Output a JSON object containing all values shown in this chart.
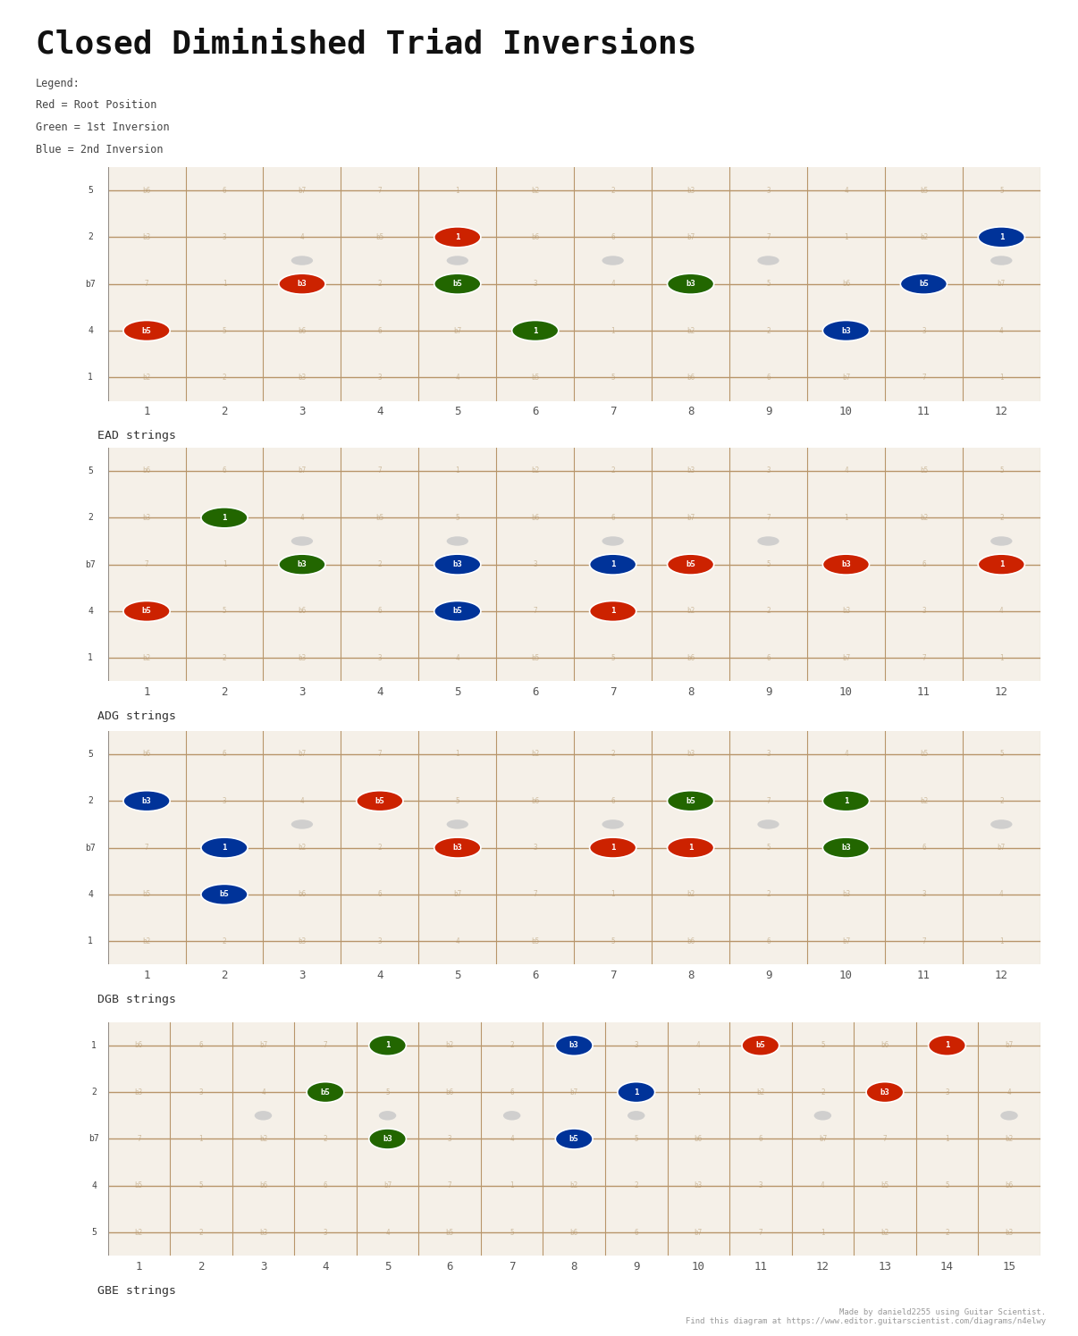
{
  "title": "Closed Diminished Triad Inversions",
  "background_color": "#ffffff",
  "fretboard_bg": "#f5f0e8",
  "fret_line_color": "#b8956a",
  "string_color": "#b8956a",
  "nut_color": "#999999",
  "legend": {
    "title": "Legend:",
    "red": "Red = Root Position",
    "green": "Green = 1st Inversion",
    "blue": "Blue = 2nd Inversion"
  },
  "color_map": {
    "red": "#cc2200",
    "green": "#226600",
    "blue": "#003399",
    "gray": "#bbbbbb"
  },
  "diagrams": [
    {
      "label": "EAD strings",
      "num_frets": 12,
      "num_strings": 5,
      "string_labels": [
        "5",
        "2",
        "b7",
        "4",
        "1"
      ],
      "fret_markers": [
        3,
        5,
        7,
        9,
        12
      ],
      "scale_notes": [
        [
          "b6",
          "6",
          "b7",
          "7",
          "1",
          "b2",
          "2",
          "b3",
          "3",
          "4",
          "b5",
          "5"
        ],
        [
          "b3",
          "3",
          "4",
          "b5",
          "5",
          "b6",
          "6",
          "b7",
          "7",
          "1",
          "b2",
          "2"
        ],
        [
          "7",
          "1",
          "b2",
          "2",
          "b3",
          "3",
          "4",
          "b5",
          "5",
          "b6",
          "6",
          "b7"
        ],
        [
          "b5",
          "5",
          "b6",
          "6",
          "b7",
          "7",
          "1",
          "b2",
          "2",
          "b3",
          "3",
          "4"
        ],
        [
          "b2",
          "2",
          "b3",
          "3",
          "4",
          "b5",
          "5",
          "b6",
          "6",
          "b7",
          "7",
          "1"
        ]
      ],
      "notes": [
        {
          "fret": 1,
          "string": 4,
          "label": "b5",
          "color": "red"
        },
        {
          "fret": 3,
          "string": 3,
          "label": "b3",
          "color": "red"
        },
        {
          "fret": 5,
          "string": 2,
          "label": "1",
          "color": "red"
        },
        {
          "fret": 5,
          "string": 3,
          "label": "b5",
          "color": "green"
        },
        {
          "fret": 6,
          "string": 4,
          "label": "1",
          "color": "green"
        },
        {
          "fret": 8,
          "string": 3,
          "label": "b3",
          "color": "green"
        },
        {
          "fret": 10,
          "string": 4,
          "label": "b3",
          "color": "blue"
        },
        {
          "fret": 11,
          "string": 3,
          "label": "b5",
          "color": "blue"
        },
        {
          "fret": 12,
          "string": 2,
          "label": "1",
          "color": "blue"
        }
      ]
    },
    {
      "label": "ADG strings",
      "num_frets": 12,
      "num_strings": 5,
      "string_labels": [
        "5",
        "2",
        "b7",
        "4",
        "1"
      ],
      "fret_markers": [
        3,
        5,
        7,
        9,
        12
      ],
      "scale_notes": [
        [
          "b6",
          "6",
          "b7",
          "7",
          "1",
          "b2",
          "2",
          "b3",
          "3",
          "4",
          "b5",
          "5"
        ],
        [
          "b3",
          "3",
          "4",
          "b5",
          "5",
          "b6",
          "6",
          "b7",
          "7",
          "1",
          "b2",
          "2"
        ],
        [
          "7",
          "1",
          "b2",
          "2",
          "b3",
          "3",
          "4",
          "b5",
          "5",
          "b6",
          "6",
          "b7"
        ],
        [
          "b5",
          "5",
          "b6",
          "6",
          "b7",
          "7",
          "1",
          "b2",
          "2",
          "b3",
          "3",
          "4"
        ],
        [
          "b2",
          "2",
          "b3",
          "3",
          "4",
          "b5",
          "5",
          "b6",
          "6",
          "b7",
          "7",
          "1"
        ]
      ],
      "notes": [
        {
          "fret": 1,
          "string": 4,
          "label": "b5",
          "color": "red"
        },
        {
          "fret": 2,
          "string": 2,
          "label": "1",
          "color": "green"
        },
        {
          "fret": 3,
          "string": 3,
          "label": "b3",
          "color": "green"
        },
        {
          "fret": 5,
          "string": 3,
          "label": "b3",
          "color": "blue"
        },
        {
          "fret": 5,
          "string": 4,
          "label": "b5",
          "color": "blue"
        },
        {
          "fret": 7,
          "string": 3,
          "label": "1",
          "color": "blue"
        },
        {
          "fret": 7,
          "string": 4,
          "label": "1",
          "color": "red"
        },
        {
          "fret": 8,
          "string": 3,
          "label": "b5",
          "color": "red"
        },
        {
          "fret": 10,
          "string": 3,
          "label": "b3",
          "color": "red"
        },
        {
          "fret": 12,
          "string": 3,
          "label": "1",
          "color": "red"
        }
      ]
    },
    {
      "label": "DGB strings",
      "num_frets": 12,
      "num_strings": 5,
      "string_labels": [
        "5",
        "2",
        "b7",
        "4",
        "1"
      ],
      "fret_markers": [
        3,
        5,
        7,
        9,
        12
      ],
      "scale_notes": [
        [
          "b6",
          "6",
          "b7",
          "7",
          "1",
          "b2",
          "2",
          "b3",
          "3",
          "4",
          "b5",
          "5"
        ],
        [
          "b3",
          "3",
          "4",
          "b5",
          "5",
          "b6",
          "6",
          "b7",
          "7",
          "1",
          "b2",
          "2"
        ],
        [
          "7",
          "1",
          "b2",
          "2",
          "b3",
          "3",
          "4",
          "b5",
          "5",
          "b6",
          "6",
          "b7"
        ],
        [
          "b5",
          "5",
          "b6",
          "6",
          "b7",
          "7",
          "1",
          "b2",
          "2",
          "b3",
          "3",
          "4"
        ],
        [
          "b2",
          "2",
          "b3",
          "3",
          "4",
          "b5",
          "5",
          "b6",
          "6",
          "b7",
          "7",
          "1"
        ]
      ],
      "notes": [
        {
          "fret": 1,
          "string": 2,
          "label": "b3",
          "color": "blue"
        },
        {
          "fret": 2,
          "string": 3,
          "label": "1",
          "color": "blue"
        },
        {
          "fret": 2,
          "string": 4,
          "label": "b5",
          "color": "blue"
        },
        {
          "fret": 4,
          "string": 2,
          "label": "b5",
          "color": "red"
        },
        {
          "fret": 5,
          "string": 3,
          "label": "b3",
          "color": "red"
        },
        {
          "fret": 7,
          "string": 3,
          "label": "1",
          "color": "red"
        },
        {
          "fret": 8,
          "string": 2,
          "label": "b5",
          "color": "green"
        },
        {
          "fret": 8,
          "string": 3,
          "label": "1",
          "color": "red"
        },
        {
          "fret": 10,
          "string": 2,
          "label": "1",
          "color": "green"
        },
        {
          "fret": 10,
          "string": 3,
          "label": "b3",
          "color": "green"
        }
      ]
    },
    {
      "label": "GBE strings",
      "num_frets": 15,
      "num_strings": 5,
      "string_labels": [
        "1",
        "2",
        "b7",
        "4",
        "5"
      ],
      "fret_markers": [
        3,
        5,
        7,
        9,
        12,
        15
      ],
      "scale_notes": [
        [
          "b6",
          "6",
          "b7",
          "7",
          "1",
          "b2",
          "2",
          "b3",
          "3",
          "4",
          "b5",
          "5",
          "b6",
          "6",
          "b7"
        ],
        [
          "b3",
          "3",
          "4",
          "b5",
          "5",
          "b6",
          "6",
          "b7",
          "7",
          "1",
          "b2",
          "2",
          "b3",
          "3",
          "4"
        ],
        [
          "7",
          "1",
          "b2",
          "2",
          "b3",
          "3",
          "4",
          "b5",
          "5",
          "b6",
          "6",
          "b7",
          "7",
          "1",
          "b2"
        ],
        [
          "b5",
          "5",
          "b6",
          "6",
          "b7",
          "7",
          "1",
          "b2",
          "2",
          "b3",
          "3",
          "4",
          "b5",
          "5",
          "b6"
        ],
        [
          "b2",
          "2",
          "b3",
          "3",
          "4",
          "b5",
          "5",
          "b6",
          "6",
          "b7",
          "7",
          "1",
          "b2",
          "2",
          "b3"
        ]
      ],
      "notes": [
        {
          "fret": 4,
          "string": 2,
          "label": "b5",
          "color": "green"
        },
        {
          "fret": 5,
          "string": 1,
          "label": "1",
          "color": "green"
        },
        {
          "fret": 5,
          "string": 3,
          "label": "b3",
          "color": "green"
        },
        {
          "fret": 8,
          "string": 1,
          "label": "b3",
          "color": "blue"
        },
        {
          "fret": 8,
          "string": 3,
          "label": "b5",
          "color": "blue"
        },
        {
          "fret": 9,
          "string": 2,
          "label": "1",
          "color": "blue"
        },
        {
          "fret": 11,
          "string": 1,
          "label": "b5",
          "color": "red"
        },
        {
          "fret": 13,
          "string": 2,
          "label": "b3",
          "color": "red"
        },
        {
          "fret": 14,
          "string": 1,
          "label": "1",
          "color": "red"
        }
      ]
    }
  ]
}
